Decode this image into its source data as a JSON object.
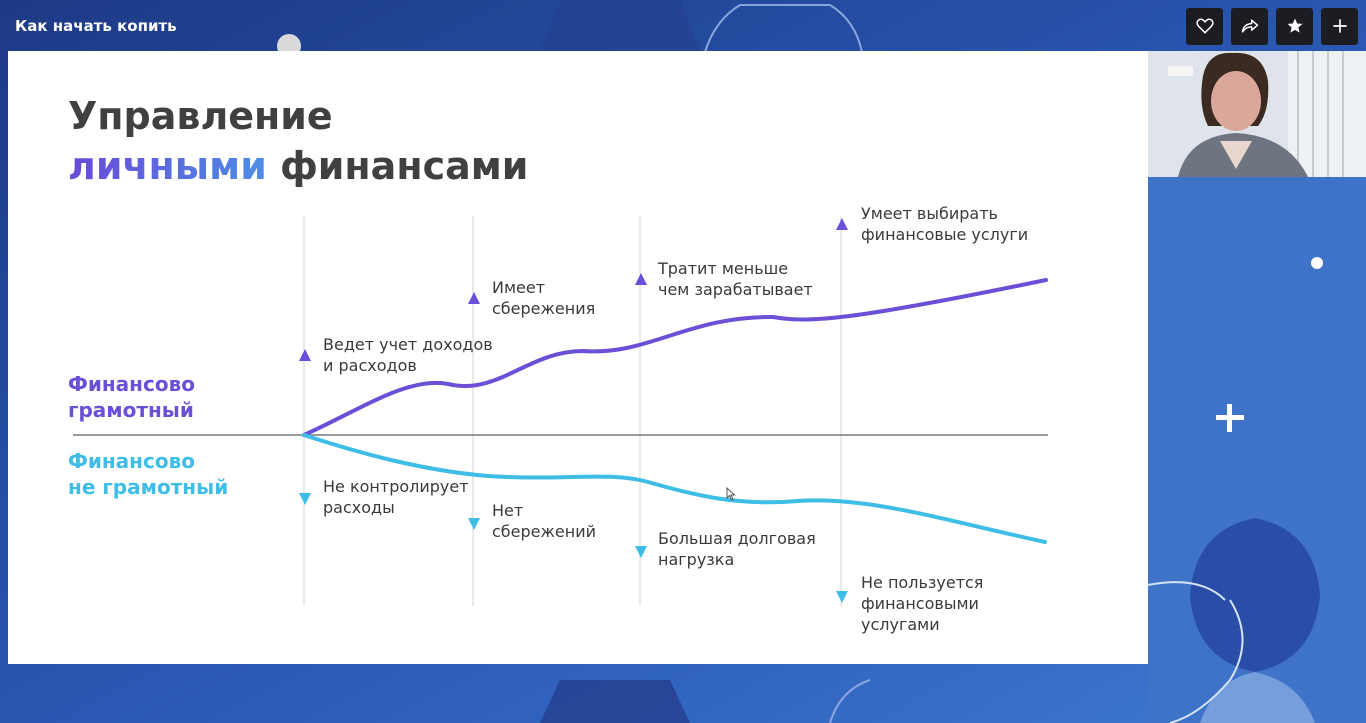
{
  "window": {
    "title": "Как начать копить"
  },
  "toolbar": [
    {
      "id": "like",
      "icon": "heart-icon"
    },
    {
      "id": "share",
      "icon": "share-icon"
    },
    {
      "id": "favorite",
      "icon": "star-icon"
    },
    {
      "id": "add",
      "icon": "plus-icon"
    }
  ],
  "slide": {
    "title_line1": "Управление",
    "title_accent": "личными",
    "title_rest": "финансами",
    "literate_label_1": "Финансово",
    "literate_label_2": "грамотный",
    "illiterate_label_1": "Финансово",
    "illiterate_label_2": "не грамотный",
    "literate_notes": [
      {
        "l1": "Ведет учет доходов",
        "l2": "и расходов"
      },
      {
        "l1": "Имеет",
        "l2": "сбережения"
      },
      {
        "l1": "Тратит меньше",
        "l2": "чем зарабатывает"
      },
      {
        "l1": "Умеет выбирать",
        "l2": "финансовые услуги"
      }
    ],
    "illiterate_notes": [
      {
        "l1": "Не контролирует",
        "l2": "расходы"
      },
      {
        "l1": "Нет",
        "l2": "сбережений"
      },
      {
        "l1": "Большая долговая",
        "l2": "нагрузка"
      },
      {
        "l1": "Не пользуется",
        "l2": "финансовыми",
        "l3": "услугами"
      }
    ]
  },
  "colors": {
    "literate": "#6b4fd6",
    "illiterate": "#3ebde6",
    "background": "#2c4a9c",
    "title_text": "#404040"
  }
}
